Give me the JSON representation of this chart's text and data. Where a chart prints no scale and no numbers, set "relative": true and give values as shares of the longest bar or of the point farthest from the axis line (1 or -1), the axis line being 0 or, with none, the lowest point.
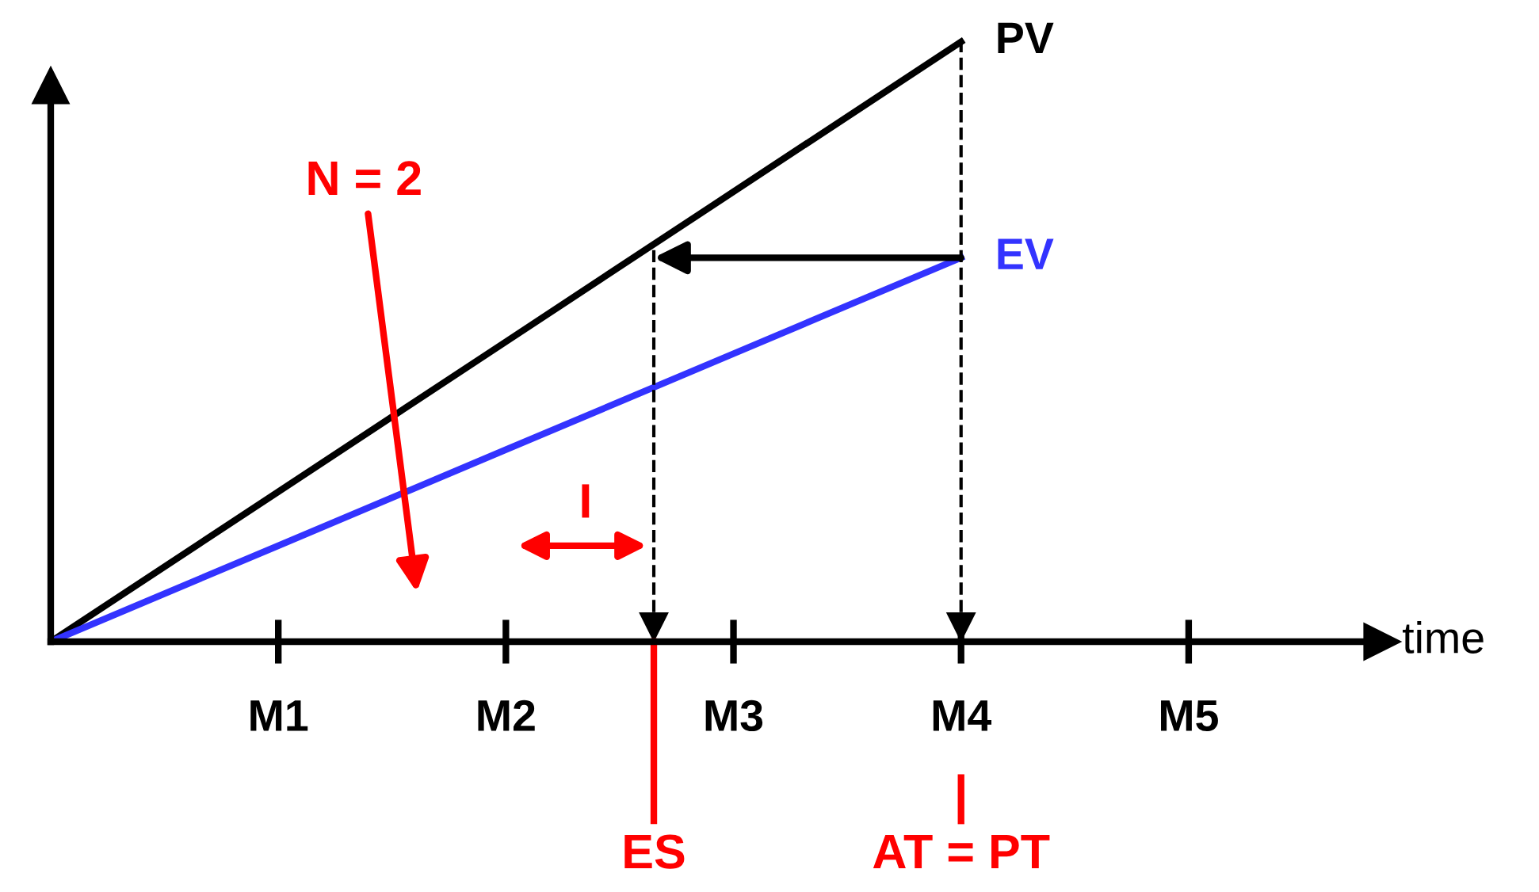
{
  "chart_data": {
    "type": "line",
    "relative": true,
    "xlabel": "time",
    "categories": [
      null,
      "M1",
      "M2",
      "M3",
      "M4",
      "M5"
    ],
    "series": [
      {
        "name": "PV",
        "color": "#000000",
        "values": [
          0,
          0.25,
          0.5,
          0.75,
          1,
          null
        ]
      },
      {
        "name": "EV",
        "color": "#3333ff",
        "values": [
          0,
          0.16,
          0.32,
          0.48,
          0.64,
          null
        ]
      }
    ],
    "annotations": [
      "N = 2",
      "I",
      "ES",
      "AT = PT"
    ],
    "legend": false,
    "marker": "none",
    "line_style": "solid"
  }
}
